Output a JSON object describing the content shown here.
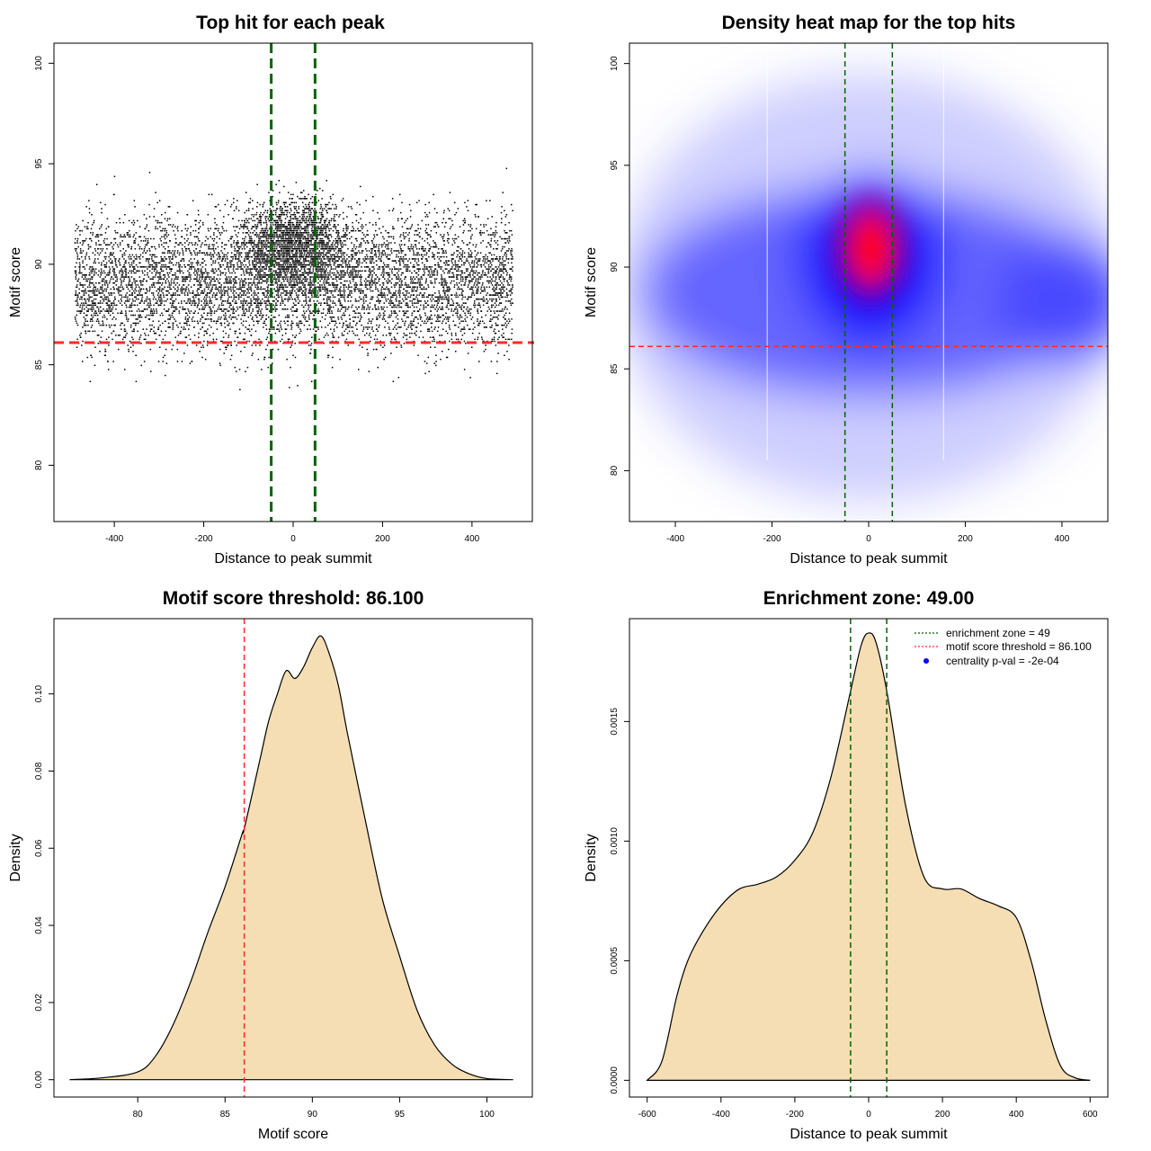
{
  "chart_data": [
    {
      "id": "scatter",
      "type": "scatter",
      "title": "Top hit for each peak",
      "xlabel": "Distance to peak summit",
      "ylabel": "Motif score",
      "xlim": [
        -535,
        535
      ],
      "ylim": [
        77.2,
        101
      ],
      "xticks": [
        "-400",
        "-200",
        "0",
        "200",
        "400"
      ],
      "xtick_values": [
        -400,
        -200,
        0,
        200,
        400
      ],
      "yticks": [
        "80",
        "85",
        "90",
        "95",
        "100"
      ],
      "ytick_values": [
        80,
        85,
        90,
        95,
        100
      ],
      "threshold": 86.1,
      "zone": 49,
      "point_count": 9000,
      "colors": {
        "points": "#000000",
        "threshold": "#ff2a2a",
        "zone": "#006400"
      }
    },
    {
      "id": "heatmap",
      "type": "heatmap",
      "title": "Density heat map for the top hits",
      "xlabel": "Distance to peak summit",
      "ylabel": "Motif score",
      "xlim": [
        -495,
        495
      ],
      "ylim": [
        77.5,
        101
      ],
      "xticks": [
        "-400",
        "-200",
        "0",
        "200",
        "400"
      ],
      "xtick_values": [
        -400,
        -200,
        0,
        200,
        400
      ],
      "yticks": [
        "80",
        "85",
        "90",
        "95",
        "100"
      ],
      "ytick_values": [
        80,
        85,
        90,
        95,
        100
      ],
      "threshold": 86.1,
      "zone": 49,
      "peak": {
        "x": 5,
        "y": 90.9
      },
      "colors": {
        "low": "#ffffff",
        "mid": "#0000ff",
        "high": "#ff0000",
        "threshold": "#ff2a2a",
        "zone": "#006400"
      }
    },
    {
      "id": "score_density",
      "type": "area",
      "title": "Motif score threshold: 86.100",
      "xlabel": "Motif score",
      "ylabel": "Density",
      "xlim": [
        75.2,
        102.6
      ],
      "ylim": [
        -0.0045,
        0.1195
      ],
      "xticks": [
        "80",
        "85",
        "90",
        "95",
        "100"
      ],
      "xtick_values": [
        80,
        85,
        90,
        95,
        100
      ],
      "yticks": [
        "0.00",
        "0.02",
        "0.04",
        "0.06",
        "0.08",
        "0.10"
      ],
      "ytick_values": [
        0,
        0.02,
        0.04,
        0.06,
        0.08,
        0.1
      ],
      "x": [
        76.1,
        78,
        80,
        81,
        82,
        83,
        84,
        85,
        86,
        86.1,
        87,
        87.5,
        88,
        88.5,
        89,
        89.5,
        90,
        90.5,
        91,
        91.5,
        92,
        93,
        94,
        95,
        96,
        97,
        98,
        99,
        100,
        101.5
      ],
      "y": [
        0.0,
        0.0005,
        0.002,
        0.006,
        0.014,
        0.025,
        0.038,
        0.05,
        0.064,
        0.065,
        0.083,
        0.093,
        0.1,
        0.106,
        0.104,
        0.107,
        0.112,
        0.115,
        0.11,
        0.102,
        0.09,
        0.068,
        0.047,
        0.032,
        0.018,
        0.009,
        0.004,
        0.0015,
        0.0003,
        0.0
      ],
      "threshold": 86.1,
      "colors": {
        "fill": "#f5deb3",
        "line": "#000000",
        "threshold": "#ff2a2a"
      }
    },
    {
      "id": "distance_density",
      "type": "area",
      "title": "Enrichment zone: 49.00",
      "xlabel": "Distance to peak summit",
      "ylabel": "Density",
      "xlim": [
        -648,
        648
      ],
      "ylim": [
        -7e-05,
        0.00193
      ],
      "xticks": [
        "-600",
        "-400",
        "-200",
        "0",
        "200",
        "400",
        "600"
      ],
      "xtick_values": [
        -600,
        -400,
        -200,
        0,
        200,
        400,
        600
      ],
      "yticks": [
        "0.0000",
        "0.0005",
        "0.0010",
        "0.0015"
      ],
      "ytick_values": [
        0,
        0.0005,
        0.001,
        0.0015
      ],
      "x": [
        -600,
        -560,
        -520,
        -490,
        -450,
        -400,
        -350,
        -300,
        -250,
        -200,
        -150,
        -100,
        -50,
        -20,
        0,
        20,
        50,
        100,
        150,
        200,
        250,
        300,
        350,
        400,
        440,
        480,
        520,
        560,
        600
      ],
      "y": [
        0.0,
        8e-05,
        0.00035,
        0.0005,
        0.00062,
        0.00073,
        0.0008,
        0.00082,
        0.00085,
        0.00092,
        0.00104,
        0.00128,
        0.00162,
        0.00182,
        0.00187,
        0.00183,
        0.00162,
        0.00115,
        0.00085,
        0.0008,
        0.0008,
        0.00076,
        0.00073,
        0.00068,
        0.0005,
        0.00025,
        6e-05,
        1e-05,
        0.0
      ],
      "zone": 49,
      "legend": [
        {
          "label": "enrichment zone = 49",
          "kind": "dotted-line",
          "color": "#006400"
        },
        {
          "label": "motif score threshold = 86.100",
          "kind": "dotted-line",
          "color": "#ff2a2a"
        },
        {
          "label": "centrality p-val = -2e-04",
          "kind": "point",
          "color": "#0000ff"
        }
      ],
      "legend_position": "top-right",
      "colors": {
        "fill": "#f5deb3",
        "line": "#000000",
        "zone": "#006400"
      }
    }
  ]
}
